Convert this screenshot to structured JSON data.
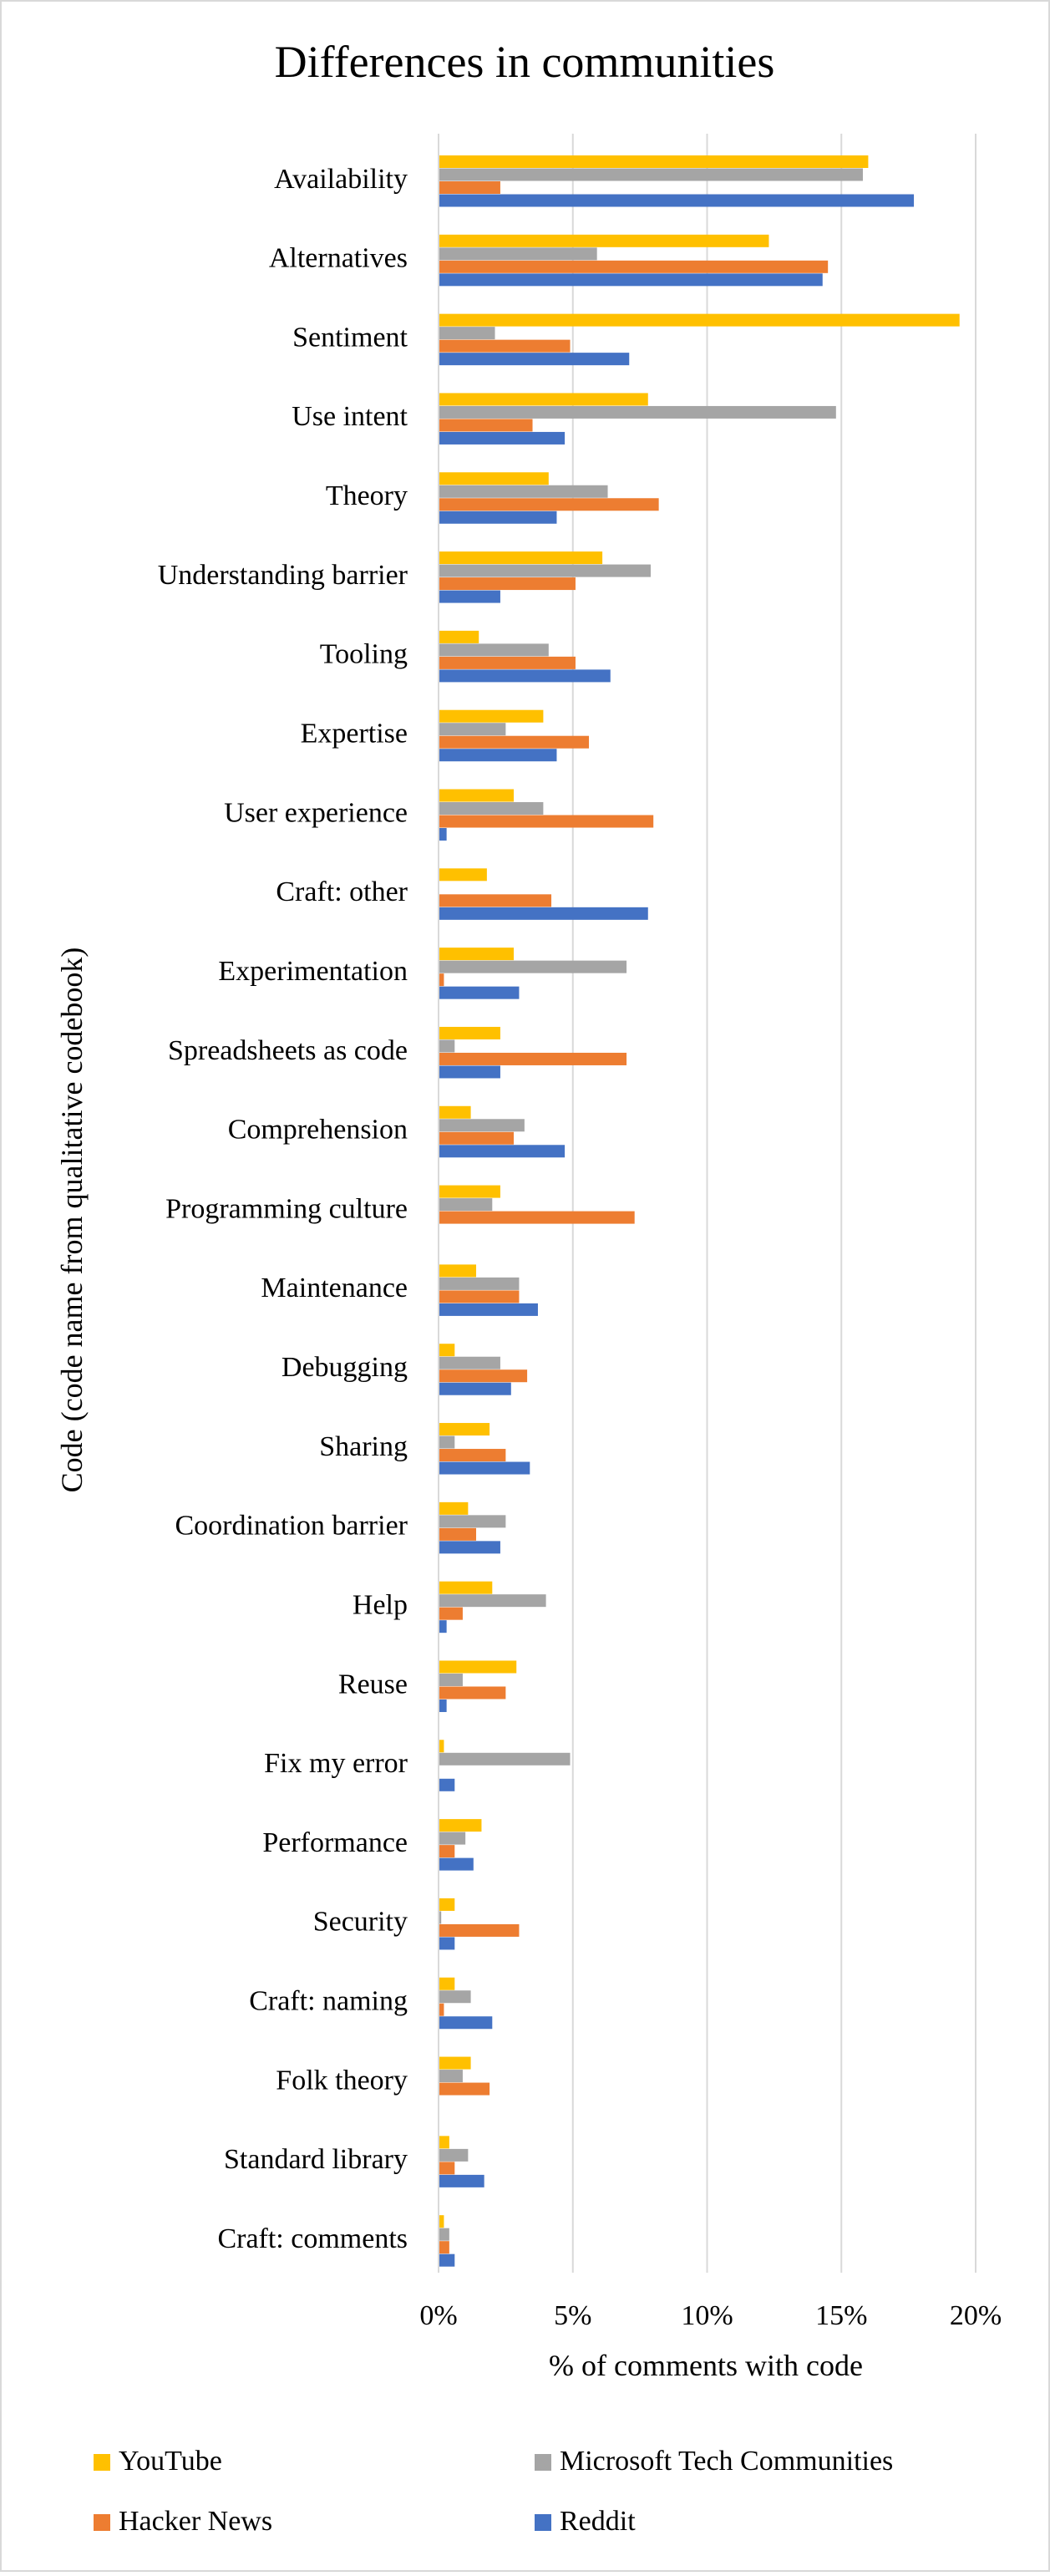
{
  "chart_data": {
    "type": "bar",
    "orientation": "horizontal",
    "title": "Differences in communities",
    "xlabel": "% of comments with code",
    "ylabel": "Code (code name from qualitative codebook)",
    "xlim": [
      0,
      20
    ],
    "x_ticks": [
      "0%",
      "5%",
      "10%",
      "15%",
      "20%"
    ],
    "x_tick_values": [
      0,
      5,
      10,
      15,
      20
    ],
    "grid": "vertical",
    "legend_position": "bottom",
    "categories": [
      "Availability",
      "Alternatives",
      "Sentiment",
      "Use intent",
      "Theory",
      "Understanding barrier",
      "Tooling",
      "Expertise",
      "User experience",
      "Craft: other",
      "Experimentation",
      "Spreadsheets as code",
      "Comprehension",
      "Programming culture",
      "Maintenance",
      "Debugging",
      "Sharing",
      "Coordination barrier",
      "Help",
      "Reuse",
      "Fix my error",
      "Performance",
      "Security",
      "Craft: naming",
      "Folk theory",
      "Standard library",
      "Craft: comments"
    ],
    "series": [
      {
        "name": "YouTube",
        "color": "#FFC000",
        "values": [
          16.0,
          12.3,
          19.4,
          7.8,
          4.1,
          6.1,
          1.5,
          3.9,
          2.8,
          1.8,
          2.8,
          2.3,
          1.2,
          2.3,
          1.4,
          0.6,
          1.9,
          1.1,
          2.0,
          2.9,
          0.2,
          1.6,
          0.6,
          0.6,
          1.2,
          0.4,
          0.2
        ]
      },
      {
        "name": "Microsoft Tech Communities",
        "color": "#A5A5A5",
        "values": [
          15.8,
          5.9,
          2.1,
          14.8,
          6.3,
          7.9,
          4.1,
          2.5,
          3.9,
          0.0,
          7.0,
          0.6,
          3.2,
          2.0,
          3.0,
          2.3,
          0.6,
          2.5,
          4.0,
          0.9,
          4.9,
          1.0,
          0.1,
          1.2,
          0.9,
          1.1,
          0.4
        ]
      },
      {
        "name": "Hacker News",
        "color": "#ED7D31",
        "values": [
          2.3,
          14.5,
          4.9,
          3.5,
          8.2,
          5.1,
          5.1,
          5.6,
          8.0,
          4.2,
          0.2,
          7.0,
          2.8,
          7.3,
          3.0,
          3.3,
          2.5,
          1.4,
          0.9,
          2.5,
          0.0,
          0.6,
          3.0,
          0.2,
          1.9,
          0.6,
          0.4
        ]
      },
      {
        "name": "Reddit",
        "color": "#4472C4",
        "values": [
          17.7,
          14.3,
          7.1,
          4.7,
          4.4,
          2.3,
          6.4,
          4.4,
          0.3,
          7.8,
          3.0,
          2.3,
          4.7,
          0.0,
          3.7,
          2.7,
          3.4,
          2.3,
          0.3,
          0.3,
          0.6,
          1.3,
          0.6,
          2.0,
          0.0,
          1.7,
          0.6
        ]
      }
    ],
    "legend_order": [
      "YouTube",
      "Microsoft Tech Communities",
      "Hacker News",
      "Reddit"
    ]
  }
}
